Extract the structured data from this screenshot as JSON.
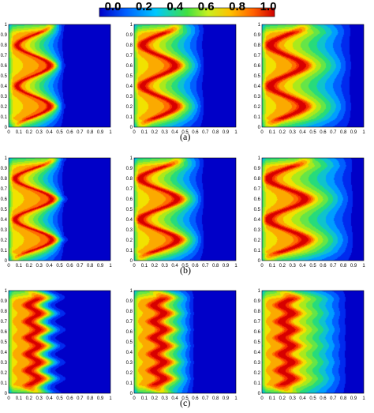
{
  "colorbar": {
    "labels": [
      "0.0",
      "0.2",
      "0.4",
      "0.6",
      "0.8",
      "1.0"
    ],
    "colors": [
      "#1a1aff",
      "#0080ff",
      "#00d0ff",
      "#30e050",
      "#c0f020",
      "#ffd000",
      "#ff7a00",
      "#e60000"
    ]
  },
  "captions": [
    "(a)",
    "(b)",
    "(c)"
  ],
  "chart_data": {
    "type": "heatmap",
    "title": "",
    "layout": "3x3 grid of contour plots",
    "value_range": [
      0.0,
      1.0
    ],
    "colorbar_ticks": [
      0.0,
      0.2,
      0.4,
      0.6,
      0.8,
      1.0
    ],
    "x_ticks": [
      "0",
      "0.1",
      "0.2",
      "0.3",
      "0.4",
      "0.5",
      "0.6",
      "0.7",
      "0.8",
      "0.9",
      "1"
    ],
    "y_ticks": [
      "0",
      "0.1",
      "0.2",
      "0.3",
      "0.4",
      "0.5",
      "0.6",
      "0.7",
      "0.8",
      "0.9",
      "1"
    ],
    "xlim": [
      0,
      1
    ],
    "ylim": [
      0,
      1
    ],
    "rows": [
      {
        "caption": "(a)",
        "wave_periods": 2,
        "wave_center_x": 0.24,
        "wave_amplitude_x": 0.16,
        "panels": [
          {
            "front_x": 0.55,
            "hot_band_width": 0.04
          },
          {
            "front_x": 0.7,
            "hot_band_width": 0.09
          },
          {
            "front_x": 0.9,
            "hot_band_width": 0.12
          }
        ]
      },
      {
        "caption": "(b)",
        "wave_periods": 2,
        "wave_center_x": 0.24,
        "wave_amplitude_x": 0.18,
        "panels": [
          {
            "front_x": 0.55,
            "hot_band_width": 0.04
          },
          {
            "front_x": 0.7,
            "hot_band_width": 0.09
          },
          {
            "front_x": 0.92,
            "hot_band_width": 0.12
          }
        ]
      },
      {
        "caption": "(c)",
        "wave_periods": 5,
        "wave_center_x": 0.24,
        "wave_amplitude_x": 0.05,
        "panels": [
          {
            "front_x": 0.45,
            "hot_band_width": 0.1
          },
          {
            "front_x": 0.6,
            "hot_band_width": 0.12
          },
          {
            "front_x": 0.85,
            "hot_band_width": 0.14
          }
        ]
      }
    ]
  }
}
